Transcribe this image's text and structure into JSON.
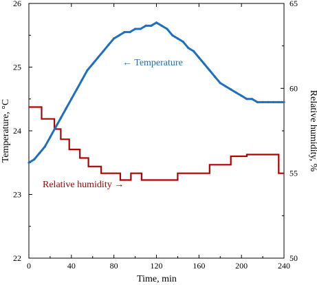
{
  "chart_data": {
    "type": "line",
    "xlabel": "Time, min",
    "ylabel_left": "Temperature, °C",
    "ylabel_right": "Relative humidity, %",
    "xlim": [
      0,
      240
    ],
    "ylim_left": [
      22,
      26
    ],
    "ylim_right": [
      50,
      65
    ],
    "x_ticks": [
      0,
      40,
      80,
      120,
      160,
      200,
      240
    ],
    "y_ticks_left": [
      22,
      23,
      24,
      25,
      26
    ],
    "y_ticks_right": [
      50,
      55,
      60,
      65
    ],
    "grid": false,
    "legend": "none",
    "colors": {
      "temperature": "#1f6fbf",
      "humidity": "#b00000"
    },
    "annotations": [
      {
        "text": "← Temperature",
        "color": "#1f6fbf"
      },
      {
        "text": "Relative humidity →",
        "color": "#b00000"
      }
    ],
    "series": [
      {
        "axis": "left",
        "x": [
          0,
          5,
          10,
          15,
          20,
          25,
          30,
          35,
          40,
          45,
          50,
          55,
          60,
          65,
          70,
          75,
          80,
          85,
          90,
          95,
          100,
          105,
          110,
          115,
          120,
          125,
          130,
          135,
          140,
          145,
          150,
          155,
          160,
          165,
          170,
          175,
          180,
          185,
          190,
          195,
          200,
          205,
          210,
          215,
          220,
          225,
          230,
          235,
          240
        ],
        "values": [
          23.5,
          23.55,
          23.65,
          23.75,
          23.9,
          24.05,
          24.2,
          24.35,
          24.5,
          24.65,
          24.8,
          24.95,
          25.05,
          25.15,
          25.25,
          25.35,
          25.45,
          25.5,
          25.55,
          25.55,
          25.6,
          25.6,
          25.65,
          25.65,
          25.7,
          25.65,
          25.6,
          25.5,
          25.45,
          25.4,
          25.3,
          25.25,
          25.15,
          25.05,
          24.95,
          24.85,
          24.75,
          24.7,
          24.65,
          24.6,
          24.55,
          24.5,
          24.5,
          24.45,
          24.45,
          24.45,
          24.45,
          24.45,
          24.45
        ]
      },
      {
        "axis": "right",
        "x": [
          0,
          12,
          12,
          24,
          24,
          30,
          30,
          38,
          38,
          48,
          48,
          56,
          56,
          68,
          68,
          86,
          86,
          96,
          96,
          106,
          106,
          140,
          140,
          170,
          170,
          190,
          190,
          205,
          205,
          235,
          235,
          240
        ],
        "values": [
          58.9,
          58.9,
          58.2,
          58.2,
          57.6,
          57.6,
          57.0,
          57.0,
          56.4,
          56.4,
          55.9,
          55.9,
          55.4,
          55.4,
          55.0,
          55.0,
          54.6,
          54.6,
          55.0,
          55.0,
          54.6,
          54.6,
          55.0,
          55.0,
          55.5,
          55.5,
          56.0,
          56.0,
          56.1,
          56.1,
          55.0,
          55.0
        ]
      }
    ]
  }
}
